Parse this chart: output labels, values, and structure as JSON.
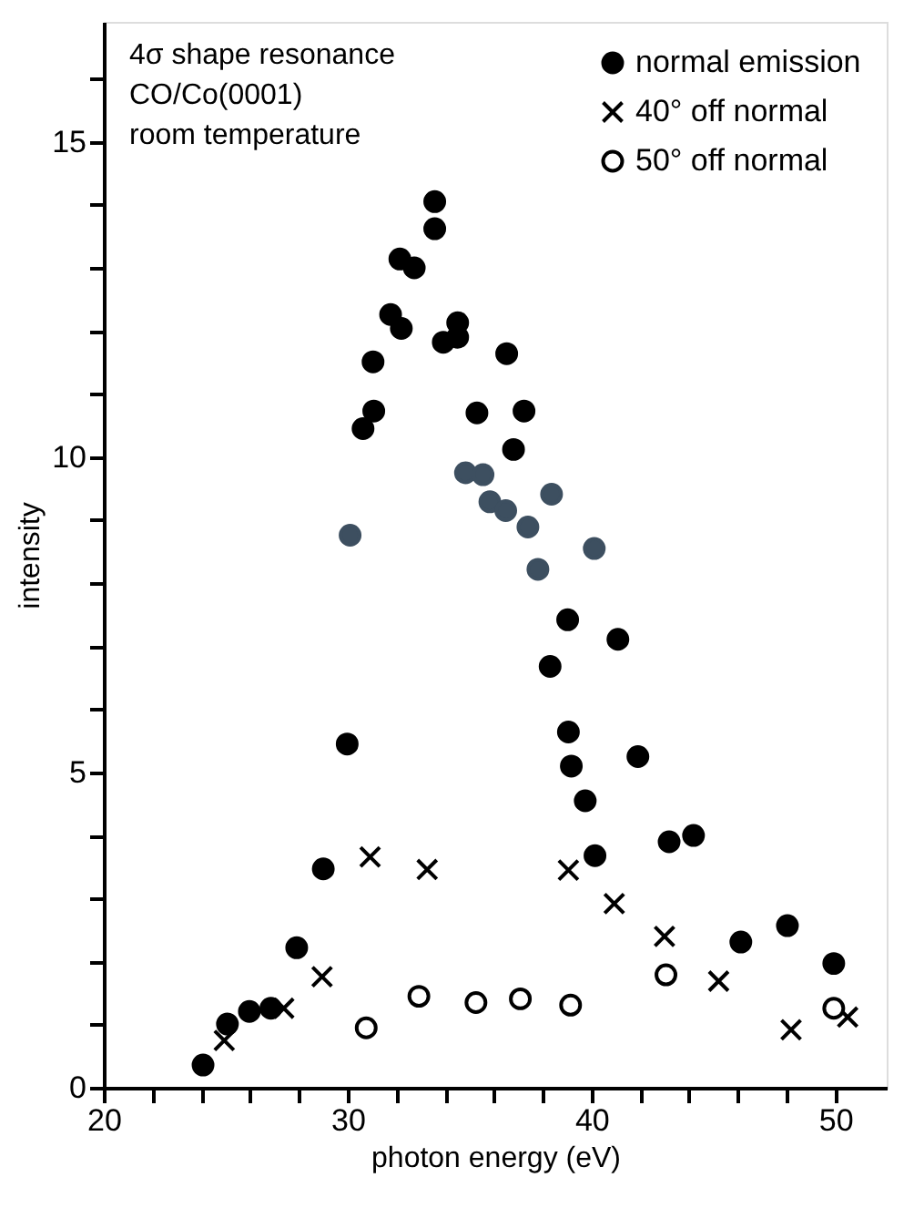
{
  "chart_data": {
    "type": "scatter",
    "xlabel": "photon energy (eV)",
    "ylabel": "intensity",
    "annotations": [
      "4σ shape resonance",
      "CO/Co(0001)",
      "room temperature"
    ],
    "xlim": [
      20,
      52.1
    ],
    "ylim": [
      0,
      16.9
    ],
    "xticks": [
      20,
      {
        "value": 22,
        "label": null
      },
      {
        "value": 24,
        "label": null
      },
      {
        "value": 26,
        "label": null
      },
      {
        "value": 28,
        "label": null
      },
      30,
      {
        "value": 32,
        "label": null
      },
      {
        "value": 34,
        "label": null
      },
      {
        "value": 36,
        "label": null
      },
      {
        "value": 38,
        "label": null
      },
      40,
      {
        "value": 42,
        "label": null
      },
      {
        "value": 44,
        "label": null
      },
      {
        "value": 46,
        "label": null
      },
      {
        "value": 48,
        "label": null
      },
      50
    ],
    "yticks": [
      0,
      {
        "value": 1,
        "label": null
      },
      {
        "value": 2,
        "label": null
      },
      {
        "value": 3,
        "label": null
      },
      {
        "value": 4,
        "label": null
      },
      5,
      {
        "value": 6,
        "label": null
      },
      {
        "value": 7,
        "label": null
      },
      {
        "value": 8,
        "label": null
      },
      {
        "value": 9,
        "label": null
      },
      10,
      {
        "value": 11,
        "label": null
      },
      {
        "value": 12,
        "label": null
      },
      {
        "value": 13,
        "label": null
      },
      {
        "value": 14,
        "label": null
      },
      15,
      {
        "value": 16,
        "label": null
      }
    ],
    "grid": false,
    "legend": "top right",
    "series": [
      {
        "name": "normal emission",
        "color": "#000000",
        "marker": "circle",
        "x": [
          24.07,
          25.07,
          25.97,
          26.85,
          27.91,
          29.0,
          29.98,
          30.63,
          31.07,
          31.04,
          31.76,
          32.2,
          32.14,
          32.73,
          33.57,
          33.57,
          33.92,
          34.51,
          34.51,
          35.3,
          36.52,
          36.8,
          37.23,
          38.3,
          39.02,
          39.05,
          39.17,
          39.74,
          40.14,
          41.08,
          41.9,
          43.18,
          44.18,
          46.12,
          48.03,
          49.93
        ],
        "values": [
          0.36,
          1.01,
          1.21,
          1.26,
          2.22,
          3.47,
          5.45,
          10.45,
          10.73,
          11.51,
          12.26,
          12.04,
          13.14,
          13.0,
          14.05,
          13.62,
          11.82,
          12.13,
          11.9,
          10.7,
          11.64,
          10.12,
          10.73,
          6.68,
          7.42,
          5.64,
          5.1,
          4.55,
          3.68,
          7.11,
          5.25,
          3.9,
          4.0,
          2.31,
          2.57,
          1.97
        ]
      },
      {
        "name": "40° off normal",
        "color": "#000000",
        "marker": "cross",
        "x": [
          24.94,
          27.38,
          28.95,
          30.92,
          33.26,
          39.05,
          40.93,
          42.99,
          45.21,
          48.18,
          50.5
        ],
        "values": [
          0.75,
          1.26,
          1.76,
          3.66,
          3.46,
          3.45,
          2.92,
          2.4,
          1.69,
          0.92,
          1.12
        ]
      },
      {
        "name": "50° off normal",
        "color": "#000000",
        "marker": "circle-open",
        "x": [
          30.76,
          32.92,
          35.26,
          37.08,
          39.14,
          43.05,
          49.93
        ],
        "values": [
          0.95,
          1.45,
          1.35,
          1.41,
          1.31,
          1.79,
          1.26
        ]
      },
      {
        "color": "#3d4f60",
        "marker": "circle",
        "x": [
          30.1,
          34.83,
          35.55,
          35.83,
          36.48,
          37.39,
          37.8,
          38.36,
          40.11
        ],
        "values": [
          8.76,
          9.75,
          9.72,
          9.29,
          9.15,
          8.89,
          8.22,
          9.41,
          8.55
        ]
      }
    ]
  }
}
